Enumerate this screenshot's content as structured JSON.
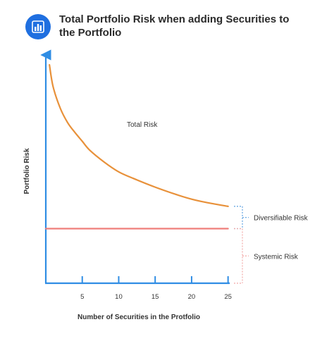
{
  "header": {
    "title": "Total Portfolio Risk when adding Securities to the Portfolio",
    "icon": "bar-chart-icon"
  },
  "chart_data": {
    "type": "line",
    "xlabel": "Number of Securities in the Protfolio",
    "ylabel": "Portfolio Risk",
    "x_ticks": [
      5,
      10,
      15,
      20,
      25
    ],
    "xlim": [
      0,
      26
    ],
    "ylim": [
      0,
      1
    ],
    "series": [
      {
        "name": "Total Risk",
        "color": "#e8913a",
        "x": [
          0.5,
          1,
          2,
          3,
          4,
          5,
          6,
          8,
          10,
          12,
          15,
          18,
          20,
          22,
          25
        ],
        "y": [
          1.0,
          0.9,
          0.8,
          0.735,
          0.69,
          0.65,
          0.61,
          0.555,
          0.51,
          0.48,
          0.44,
          0.405,
          0.385,
          0.37,
          0.352
        ]
      },
      {
        "name": "Systemic Risk",
        "color": "#ef7e7a",
        "x": [
          0,
          25
        ],
        "y": [
          0.25,
          0.25
        ]
      }
    ],
    "annotations": [
      {
        "text": "Total Risk",
        "kind": "curve-label"
      },
      {
        "text": "Diversifiable Risk",
        "kind": "bracket",
        "from": 0.25,
        "to": 0.352,
        "color": "#5ca0e0"
      },
      {
        "text": "Systemic Risk",
        "kind": "bracket",
        "from": 0.0,
        "to": 0.25,
        "color": "#f2a8a6"
      }
    ],
    "axis_color": "#2f8de4"
  }
}
